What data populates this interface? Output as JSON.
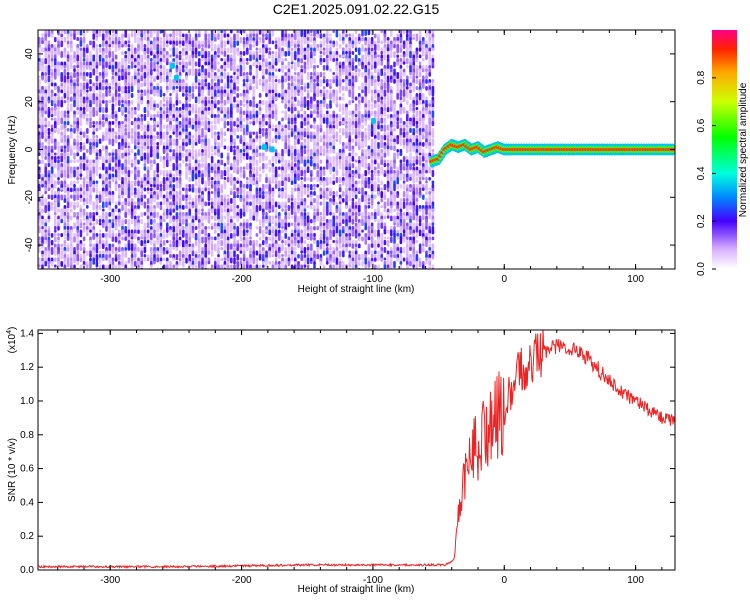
{
  "title": "C2E1.2025.091.02.22.G15",
  "top_panel": {
    "xlabel": "Height of straight line (km)",
    "ylabel": "Frequency (Hz)",
    "xticks": [
      "-300",
      "-200",
      "-100",
      "0",
      "100"
    ],
    "yticks": [
      "40",
      "20",
      "0",
      "-20",
      "-40"
    ],
    "colorbar_label": "Normalized spectral amplitude",
    "colorbar_ticks": [
      "0.0",
      "0.2",
      "0.4",
      "0.6",
      "0.8"
    ]
  },
  "bottom_panel": {
    "xlabel": "Height of straight line (km)",
    "ylabel": "SNR (10 * v/v)",
    "scale_label": "(x10",
    "scale_exp": "4",
    "scale_close": ")",
    "xticks": [
      "-300",
      "-200",
      "-100",
      "0",
      "100"
    ],
    "yticks": [
      "0.0",
      "0.2",
      "0.4",
      "0.6",
      "0.8",
      "1.0",
      "1.2",
      "1.4"
    ]
  },
  "chart_data": [
    {
      "type": "heatmap",
      "title": "C2E1.2025.091.02.22.G15",
      "xlabel": "Height of straight line (km)",
      "ylabel": "Frequency (Hz)",
      "xlim": [
        -355,
        130
      ],
      "ylim": [
        -50,
        50
      ],
      "colorbar": {
        "label": "Normalized spectral amplitude",
        "range": [
          0,
          1
        ]
      },
      "noise_region_x": [
        -355,
        -55
      ],
      "signal_track": {
        "x": [
          -55,
          -50,
          -45,
          -40,
          -35,
          -30,
          -25,
          -20,
          -15,
          -10,
          -5,
          0,
          5,
          130
        ],
        "y": [
          -5,
          -4,
          0,
          2,
          1,
          2,
          0,
          1,
          -1,
          0,
          1,
          0,
          0,
          0
        ],
        "amplitude": 0.9
      }
    },
    {
      "type": "line",
      "xlabel": "Height of straight line (km)",
      "ylabel": "SNR (10 * v/v)",
      "xlim": [
        -355,
        130
      ],
      "ylim": [
        0,
        1.42
      ],
      "y_multiplier": "x10^4",
      "color": "#ee2222",
      "series": [
        {
          "x": [
            -355,
            -300,
            -250,
            -200,
            -150,
            -100,
            -60,
            -45,
            -38,
            -35,
            -30,
            -25,
            -20,
            -10,
            0,
            10,
            20,
            30,
            40,
            50,
            60,
            70,
            80,
            90,
            100,
            110,
            120,
            130
          ],
          "values": [
            0.02,
            0.02,
            0.02,
            0.025,
            0.03,
            0.03,
            0.03,
            0.03,
            0.06,
            0.3,
            0.55,
            0.7,
            0.75,
            0.85,
            0.95,
            1.15,
            1.25,
            1.3,
            1.32,
            1.32,
            1.28,
            1.2,
            1.12,
            1.05,
            1.0,
            0.95,
            0.9,
            0.88
          ]
        }
      ]
    }
  ]
}
